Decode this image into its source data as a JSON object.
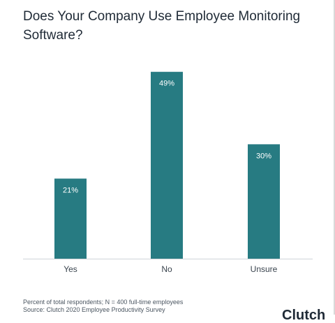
{
  "chart_data": {
    "type": "bar",
    "title": "Does Your Company Use Employee Monitoring Software?",
    "categories": [
      "Yes",
      "No",
      "Unsure"
    ],
    "values": [
      21,
      49,
      30
    ],
    "data_labels": [
      "21%",
      "49%",
      "30%"
    ],
    "unit": "%",
    "ylim": [
      0,
      55
    ],
    "grid": false,
    "bar_color": "#277b82",
    "label_color": "#ffffff"
  },
  "footnote": {
    "line1": "Percent of total respondents; N = 400 full-time employees",
    "line2": "Source: Clutch 2020 Employee Productivity Survey"
  },
  "logo_text": "Clutch"
}
